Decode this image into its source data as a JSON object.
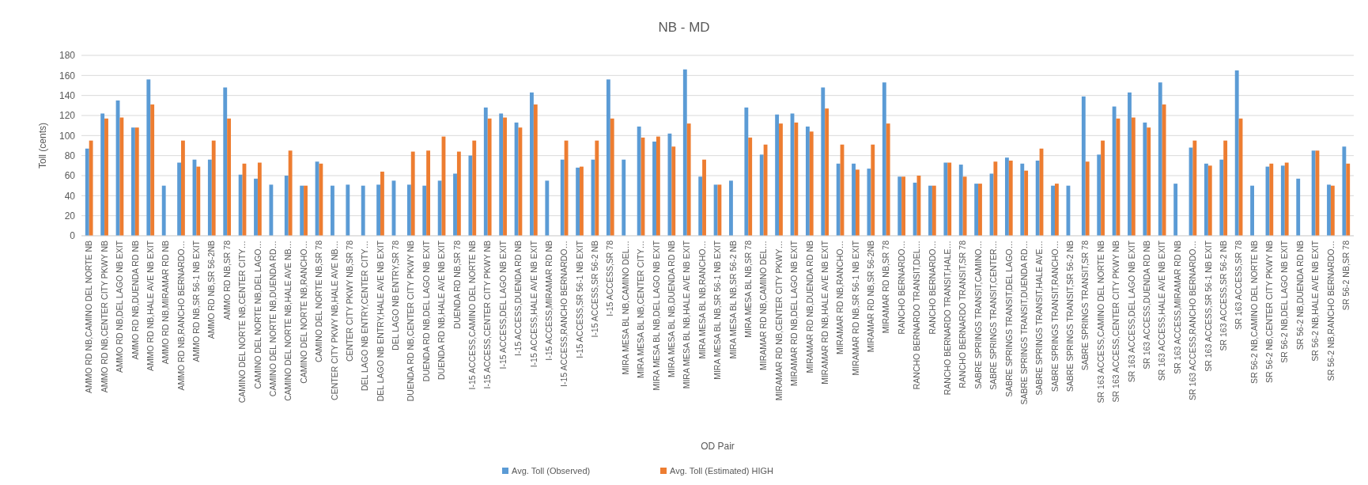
{
  "chart_data": {
    "type": "bar",
    "title": "NB - MD",
    "xlabel": "OD Pair",
    "ylabel": "Toll (cents)",
    "categories": [
      "AMMO RD NB,CAMINO DEL NORTE NB",
      "AMMO RD NB,CENTER CITY PKWY NB",
      "AMMO RD NB,DEL LAGO NB EXIT",
      "AMMO RD NB,DUENDA RD NB",
      "AMMO RD NB,HALE AVE NB EXIT",
      "AMMO RD NB,MIRAMAR RD NB",
      "AMMO RD NB,RANCHO BERNARDO…",
      "AMMO RD NB,SR 56-1 NB EXIT",
      "AMMO RD NB,SR 56-2NB",
      "AMMO RD NB,SR 78",
      "CAMINO DEL NORTE NB,CENTER CITY…",
      "CAMINO DEL NORTE NB,DEL LAGO…",
      "CAMINO DEL NORTE NB,DUENDA RD…",
      "CAMINO DEL NORTE NB,HALE AVE NB…",
      "CAMINO DEL NORTE NB,RANCHO…",
      "CAMINO DEL NORTE NB,SR 78",
      "CENTER CITY PKWY NB,HALE AVE NB…",
      "CENTER CITY PKWY NB,SR 78",
      "DEL LAGO NB ENTRY,CENTER CITY…",
      "DEL LAGO NB ENTRY,HALE AVE NB EXIT",
      "DEL LAGO NB ENTRY,SR 78",
      "DUENDA RD NB,CENTER CITY PKWY NB",
      "DUENDA RD NB,DEL LAGO NB EXIT",
      "DUENDA RD NB,HALE AVE NB EXIT",
      "DUENDA RD NB,SR 78",
      "I-15 ACCESS,CAMINO DEL NORTE NB",
      "I-15 ACCESS,CENTER CITY PKWY NB",
      "I-15 ACCESS,DEL LAGO NB EXIT",
      "I-15 ACCESS,DUENDA RD NB",
      "I-15 ACCESS,HALE AVE NB EXIT",
      "I-15 ACCESS,MIRAMAR RD NB",
      "I-15 ACCESS,RANCHO BERNARDO…",
      "I-15 ACCESS,SR 56-1 NB EXIT",
      "I-15 ACCESS,SR 56-2 NB",
      "I-15 ACCESS,SR 78",
      "MIRA MESA BL NB,CAMINO DEL…",
      "MIRA MESA BL NB,CENTER CITY…",
      "MIRA MESA BL NB,DEL LAGO NB EXIT",
      "MIRA MESA BL NB,DUENDA RD NB",
      "MIRA MESA BL NB,HALE AVE NB EXIT",
      "MIRA MESA BL NB,RANCHO…",
      "MIRA MESA BL NB,SR 56-1 NB EXIT",
      "MIRA MESA BL NB,SR 56-2 NB",
      "MIRA MESA BL NB,SR 78",
      "MIRAMAR RD NB,CAMINO DEL…",
      "MIRAMAR RD NB,CENTER CITY PKWY…",
      "MIRAMAR RD NB,DEL LAGO NB EXIT",
      "MIRAMAR RD NB,DUENDA RD NB",
      "MIRAMAR RD NB,HALE AVE NB EXIT",
      "MIRAMAR RD NB,RANCHO…",
      "MIRAMAR RD NB,SR 56-1 NB EXIT",
      "MIRAMAR RD NB,SR 56-2NB",
      "MIRAMAR RD NB,SR 78",
      "RANCHO BERNARDO…",
      "RANCHO BERNARDO TRANSIT,DEL…",
      "RANCHO BERNARDO…",
      "RANCHO BERNARDO TRANSIT,HALE…",
      "RANCHO BERNARDO TRANSIT,SR 78",
      "SABRE SPRINGS TRANSIT,CAMINO…",
      "SABRE SPRINGS TRANSIT,CENTER…",
      "SABRE SPRINGS TRANSIT,DEL LAGO…",
      "SABRE SPRINGS TRANSIT,DUENDA RD…",
      "SABRE SPRINGS TRANSIT,HALE AVE…",
      "SABRE SPRINGS TRANSIT,RANCHO…",
      "SABRE SPRINGS TRANSIT,SR 56-2 NB",
      "SABRE SPRINGS TRANSIT,SR 78",
      "SR 163 ACCESS,CAMINO DEL NORTE NB",
      "SR 163 ACCESS,CENTER CITY PKWY NB",
      "SR 163 ACCESS,DEL LAGO NB EXIT",
      "SR 163 ACCESS,DUENDA RD NB",
      "SR 163 ACCESS,HALE AVE NB EXIT",
      "SR 163 ACCESS,MIRAMAR RD NB",
      "SR 163 ACCESS,RANCHO BERNARDO…",
      "SR 163 ACCESS,SR 56-1 NB EXIT",
      "SR 163 ACCESS,SR 56-2 NB",
      "SR 163 ACCESS,SR 78",
      "SR 56-2 NB,CAMINO DEL NORTE NB",
      "SR 56-2 NB,CENTER CITY PKWY NB",
      "SR 56-2 NB,DEL LAGO NB EXIT",
      "SR 56-2 NB,DUENDA RD NB",
      "SR 56-2 NB,HALE AVE NB EXIT",
      "SR 56-2 NB,RANCHO BERNARDO…",
      "SR 56-2 NB,SR 78"
    ],
    "series": [
      {
        "name": "Avg. Toll (Observed)",
        "color": "#5b9bd5",
        "values": [
          87,
          122,
          135,
          108,
          156,
          50,
          73,
          76,
          76,
          148,
          61,
          57,
          51,
          60,
          50,
          74,
          50,
          51,
          50,
          51,
          55,
          51,
          50,
          55,
          62,
          80,
          128,
          122,
          113,
          143,
          55,
          76,
          68,
          76,
          156,
          76,
          109,
          94,
          102,
          166,
          59,
          51,
          55,
          128,
          81,
          121,
          122,
          109,
          148,
          72,
          72,
          67,
          153,
          59,
          53,
          50,
          73,
          71,
          52,
          62,
          78,
          72,
          75,
          50,
          50,
          139,
          81,
          129,
          143,
          113,
          153,
          52,
          88,
          72,
          76,
          165,
          50,
          69,
          70,
          57,
          85,
          51,
          89
        ]
      },
      {
        "name": "Avg. Toll (Estimated) HIGH",
        "color": "#ed7d31",
        "values": [
          95,
          117,
          118,
          108,
          131,
          null,
          95,
          69,
          95,
          117,
          72,
          73,
          null,
          85,
          50,
          72,
          null,
          null,
          null,
          64,
          null,
          84,
          85,
          99,
          84,
          95,
          117,
          118,
          108,
          131,
          null,
          95,
          69,
          95,
          117,
          null,
          98,
          99,
          89,
          112,
          76,
          51,
          null,
          98,
          91,
          112,
          113,
          104,
          127,
          91,
          66,
          91,
          112,
          59,
          60,
          50,
          73,
          59,
          52,
          74,
          75,
          65,
          87,
          52,
          null,
          74,
          95,
          117,
          118,
          108,
          131,
          null,
          95,
          70,
          95,
          117,
          null,
          72,
          73,
          null,
          85,
          50,
          72
        ]
      }
    ],
    "ylim": [
      0,
      180
    ],
    "yticks": [
      0,
      20,
      40,
      60,
      80,
      100,
      120,
      140,
      160,
      180
    ],
    "grid": "y",
    "legend": "bottom"
  }
}
